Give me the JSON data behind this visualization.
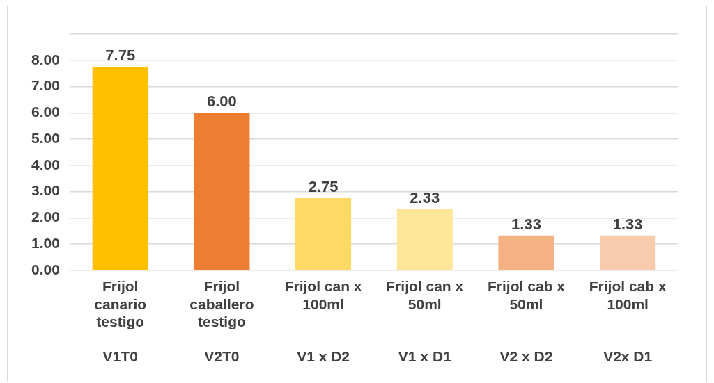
{
  "chart_data": {
    "type": "bar",
    "categories": [
      "Frijol\ncanario\ntestigo\n\nV1T0",
      "Frijol\ncaballero\ntestigo\n\nV2T0",
      "Frijol can x\n100ml\n\n\nV1 x D2",
      "Frijol can x\n50ml\n\n\nV1 x D1",
      "Frijol cab x\n50ml\n\n\nV2 x D2",
      "Frijol cab x\n100ml\n\n\nV2x D1"
    ],
    "values": [
      7.75,
      6.0,
      2.75,
      2.33,
      1.33,
      1.33
    ],
    "colors": [
      "#ffc000",
      "#ed7d31",
      "#ffd966",
      "#ffe699",
      "#f4b183",
      "#f8cbad"
    ],
    "value_labels": [
      "7.75",
      "6.00",
      "2.75",
      "2.33",
      "1.33",
      "1.33"
    ],
    "ylim": [
      0,
      9
    ],
    "yticks": [
      {
        "value": 0,
        "label": "0.00"
      },
      {
        "value": 1,
        "label": "1.00"
      },
      {
        "value": 2,
        "label": "2.00"
      },
      {
        "value": 3,
        "label": "3.00"
      },
      {
        "value": 4,
        "label": "4.00"
      },
      {
        "value": 5,
        "label": "5.00"
      },
      {
        "value": 6,
        "label": "6.00"
      },
      {
        "value": 7,
        "label": "7.00"
      },
      {
        "value": 8,
        "label": "8.00"
      },
      {
        "value": 9,
        "label": null
      }
    ],
    "grid": "y",
    "legend": false
  }
}
